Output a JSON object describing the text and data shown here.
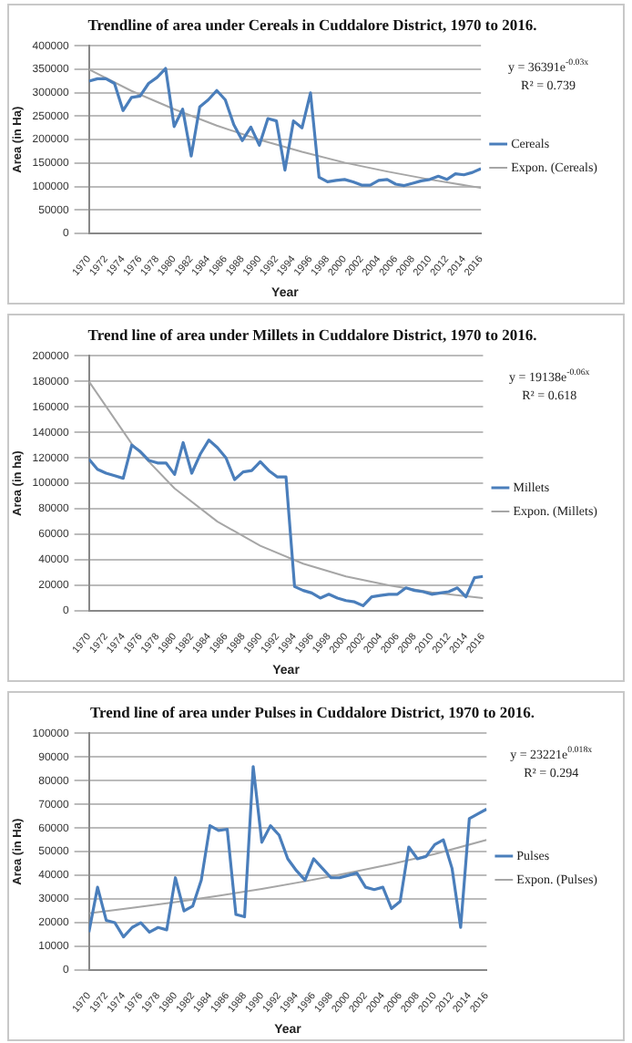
{
  "chart_data": [
    {
      "type": "line",
      "title": "Trendline of area under Cereals in Cuddalore District, 1970 to 2016.",
      "xlabel": "Year",
      "ylabel": "Area (in Ha)",
      "xlim": [
        1970,
        2016
      ],
      "xticks": [
        1970,
        1972,
        1974,
        1976,
        1978,
        1980,
        1982,
        1984,
        1986,
        1988,
        1990,
        1992,
        1994,
        1996,
        1998,
        2000,
        2002,
        2004,
        2006,
        2008,
        2010,
        2012,
        2014,
        2016
      ],
      "ylim": [
        0,
        400000
      ],
      "yticks": [
        0,
        50000,
        100000,
        150000,
        200000,
        250000,
        300000,
        350000,
        400000
      ],
      "grid": "y",
      "legend": "right",
      "marker": "none",
      "annotations": [
        "y = 36391e$^{-0.03x}$",
        "R² = 0.739"
      ],
      "x": [
        1970,
        1971,
        1972,
        1973,
        1974,
        1975,
        1976,
        1977,
        1978,
        1979,
        1980,
        1981,
        1982,
        1983,
        1984,
        1985,
        1986,
        1987,
        1988,
        1989,
        1990,
        1991,
        1992,
        1993,
        1994,
        1995,
        1996,
        1997,
        1998,
        1999,
        2000,
        2001,
        2002,
        2003,
        2004,
        2005,
        2006,
        2007,
        2008,
        2009,
        2010,
        2011,
        2012,
        2013,
        2014,
        2015,
        2016
      ],
      "series": [
        {
          "name": "Cereals",
          "color": "#4a7ebb",
          "values": [
            325000,
            330000,
            330000,
            320000,
            262000,
            290000,
            293000,
            320000,
            333000,
            352000,
            228000,
            265000,
            165000,
            270000,
            285000,
            305000,
            285000,
            232000,
            198000,
            227000,
            188000,
            245000,
            240000,
            135000,
            240000,
            225000,
            300000,
            120000,
            110000,
            113000,
            115000,
            110000,
            103000,
            103000,
            113000,
            115000,
            105000,
            102000,
            107000,
            112000,
            115000,
            122000,
            115000,
            127000,
            125000,
            130000,
            138000
          ]
        },
        {
          "name": "Expon. (Cereals)",
          "type": "line",
          "color": "#a6a6a6",
          "x": [
            1970,
            1975,
            1980,
            1985,
            1990,
            1995,
            2000,
            2005,
            2010,
            2016
          ],
          "values": [
            350000,
            304000,
            265000,
            230000,
            200000,
            174000,
            151000,
            132000,
            115000,
            97000
          ]
        }
      ]
    },
    {
      "type": "line",
      "title": "Trend line of area under Millets in Cuddalore District, 1970 to 2016.",
      "xlabel": "Year",
      "ylabel": "Area (in ha)",
      "xlim": [
        1970,
        2016
      ],
      "xticks": [
        1970,
        1972,
        1974,
        1976,
        1978,
        1980,
        1982,
        1984,
        1986,
        1988,
        1990,
        1992,
        1994,
        1996,
        1998,
        2000,
        2002,
        2004,
        2006,
        2008,
        2010,
        2012,
        2014,
        2016
      ],
      "ylim": [
        0,
        200000
      ],
      "yticks": [
        0,
        20000,
        40000,
        60000,
        80000,
        100000,
        120000,
        140000,
        160000,
        180000,
        200000
      ],
      "grid": "y",
      "legend": "right",
      "marker": "none",
      "annotations": [
        "y = 19138e$^{-0.06x}$",
        "R² = 0.618"
      ],
      "x": [
        1970,
        1971,
        1972,
        1973,
        1974,
        1975,
        1976,
        1977,
        1978,
        1979,
        1980,
        1981,
        1982,
        1983,
        1984,
        1985,
        1986,
        1987,
        1988,
        1989,
        1990,
        1991,
        1992,
        1993,
        1994,
        1995,
        1996,
        1997,
        1998,
        1999,
        2000,
        2001,
        2002,
        2003,
        2004,
        2005,
        2006,
        2007,
        2008,
        2009,
        2010,
        2011,
        2012,
        2013,
        2014,
        2015,
        2016
      ],
      "series": [
        {
          "name": "Millets",
          "color": "#4a7ebb",
          "values": [
            119000,
            111000,
            108000,
            106000,
            104000,
            130000,
            125000,
            118000,
            116000,
            116000,
            107000,
            132000,
            108000,
            123000,
            134000,
            128000,
            120000,
            103000,
            109000,
            110000,
            117000,
            110000,
            105000,
            105000,
            19000,
            16000,
            14000,
            10000,
            13000,
            10000,
            8000,
            7000,
            4000,
            11000,
            12000,
            13000,
            13000,
            18000,
            16000,
            15000,
            13000,
            14000,
            15000,
            18000,
            11000,
            26000,
            27000
          ]
        },
        {
          "name": "Expon. (Millets)",
          "type": "line",
          "color": "#a6a6a6",
          "x": [
            1970,
            1975,
            1980,
            1985,
            1990,
            1995,
            2000,
            2005,
            2010,
            2016
          ],
          "values": [
            180000,
            131000,
            96000,
            70000,
            51000,
            37000,
            27000,
            20000,
            14500,
            10000
          ]
        }
      ]
    },
    {
      "type": "line",
      "title": "Trend line of area under Pulses in Cuddalore District, 1970 to 2016.",
      "xlabel": "Year",
      "ylabel": "Area (in Ha)",
      "xlim": [
        1970,
        2016
      ],
      "xticks": [
        1970,
        1972,
        1974,
        1976,
        1978,
        1980,
        1982,
        1984,
        1986,
        1988,
        1990,
        1992,
        1994,
        1996,
        1998,
        2000,
        2002,
        2004,
        2006,
        2008,
        2010,
        2012,
        2014,
        2016
      ],
      "ylim": [
        0,
        100000
      ],
      "yticks": [
        0,
        10000,
        20000,
        30000,
        40000,
        50000,
        60000,
        70000,
        80000,
        90000,
        100000
      ],
      "grid": "y",
      "legend": "right",
      "marker": "none",
      "annotations": [
        "y = 23221e$^{0.018x}$",
        "R² = 0.294"
      ],
      "x": [
        1970,
        1971,
        1972,
        1973,
        1974,
        1975,
        1976,
        1977,
        1978,
        1979,
        1980,
        1981,
        1982,
        1983,
        1984,
        1985,
        1986,
        1987,
        1988,
        1989,
        1990,
        1991,
        1992,
        1993,
        1994,
        1995,
        1996,
        1997,
        1998,
        1999,
        2000,
        2001,
        2002,
        2003,
        2004,
        2005,
        2006,
        2007,
        2008,
        2009,
        2010,
        2011,
        2012,
        2013,
        2014,
        2015,
        2016
      ],
      "series": [
        {
          "name": "Pulses",
          "color": "#4a7ebb",
          "values": [
            16000,
            35000,
            21000,
            20000,
            14000,
            18000,
            20000,
            16000,
            18000,
            17000,
            39000,
            25000,
            27000,
            38000,
            61000,
            59000,
            59500,
            23500,
            22500,
            86000,
            54000,
            61000,
            57000,
            47000,
            42000,
            38000,
            47000,
            43000,
            39000,
            39000,
            40000,
            41000,
            35000,
            34000,
            35000,
            26000,
            29000,
            52000,
            47000,
            48000,
            53000,
            55000,
            43000,
            18000,
            64000,
            66000,
            68000
          ]
        },
        {
          "name": "Expon. (Pulses)",
          "type": "line",
          "color": "#a6a6a6",
          "x": [
            1970,
            1975,
            1980,
            1985,
            1990,
            1995,
            2000,
            2005,
            2010,
            2016
          ],
          "values": [
            24000,
            26300,
            28700,
            31400,
            34300,
            37500,
            41000,
            44800,
            49000,
            55000
          ]
        }
      ]
    }
  ]
}
